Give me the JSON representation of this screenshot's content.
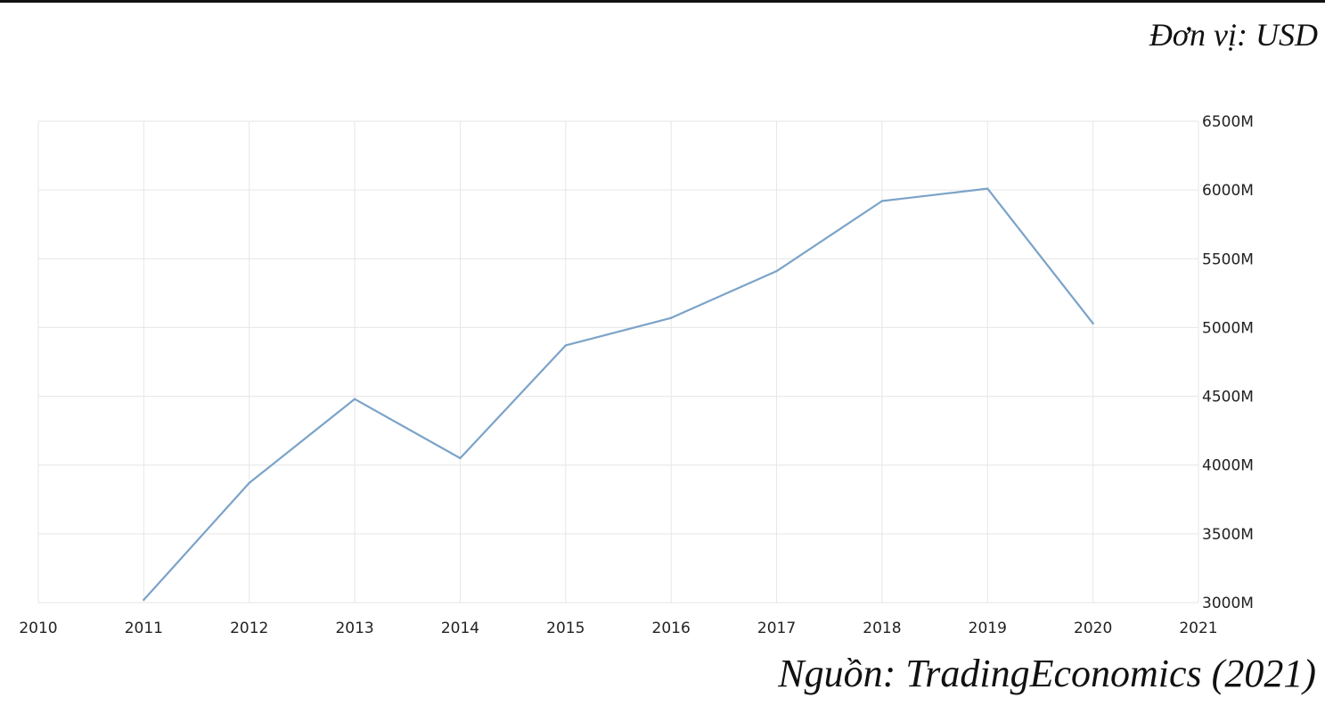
{
  "unit_note": "Đơn vị: USD",
  "source_note": "Nguồn: TradingEconomics (2021)",
  "colors": {
    "line": "#7ba3c8",
    "grid": "#e6e6e6",
    "text": "#222222"
  },
  "chart_data": {
    "type": "line",
    "title": "",
    "xlabel": "",
    "ylabel": "",
    "x_ticks": [
      2010,
      2011,
      2012,
      2013,
      2014,
      2015,
      2016,
      2017,
      2018,
      2019,
      2020,
      2021
    ],
    "y_ticks": [
      "3000M",
      "3500M",
      "4000M",
      "4500M",
      "5000M",
      "5500M",
      "6000M",
      "6500M"
    ],
    "xlim": [
      2010,
      2021
    ],
    "ylim": [
      3000,
      6500
    ],
    "grid": true,
    "y_axis_side": "right",
    "series": [
      {
        "x": [
          2011,
          2012,
          2013,
          2014,
          2015,
          2016,
          2017,
          2018,
          2019,
          2020
        ],
        "values": [
          3020,
          3870,
          4480,
          4050,
          4870,
          5070,
          5410,
          5920,
          6010,
          5030
        ]
      }
    ]
  }
}
